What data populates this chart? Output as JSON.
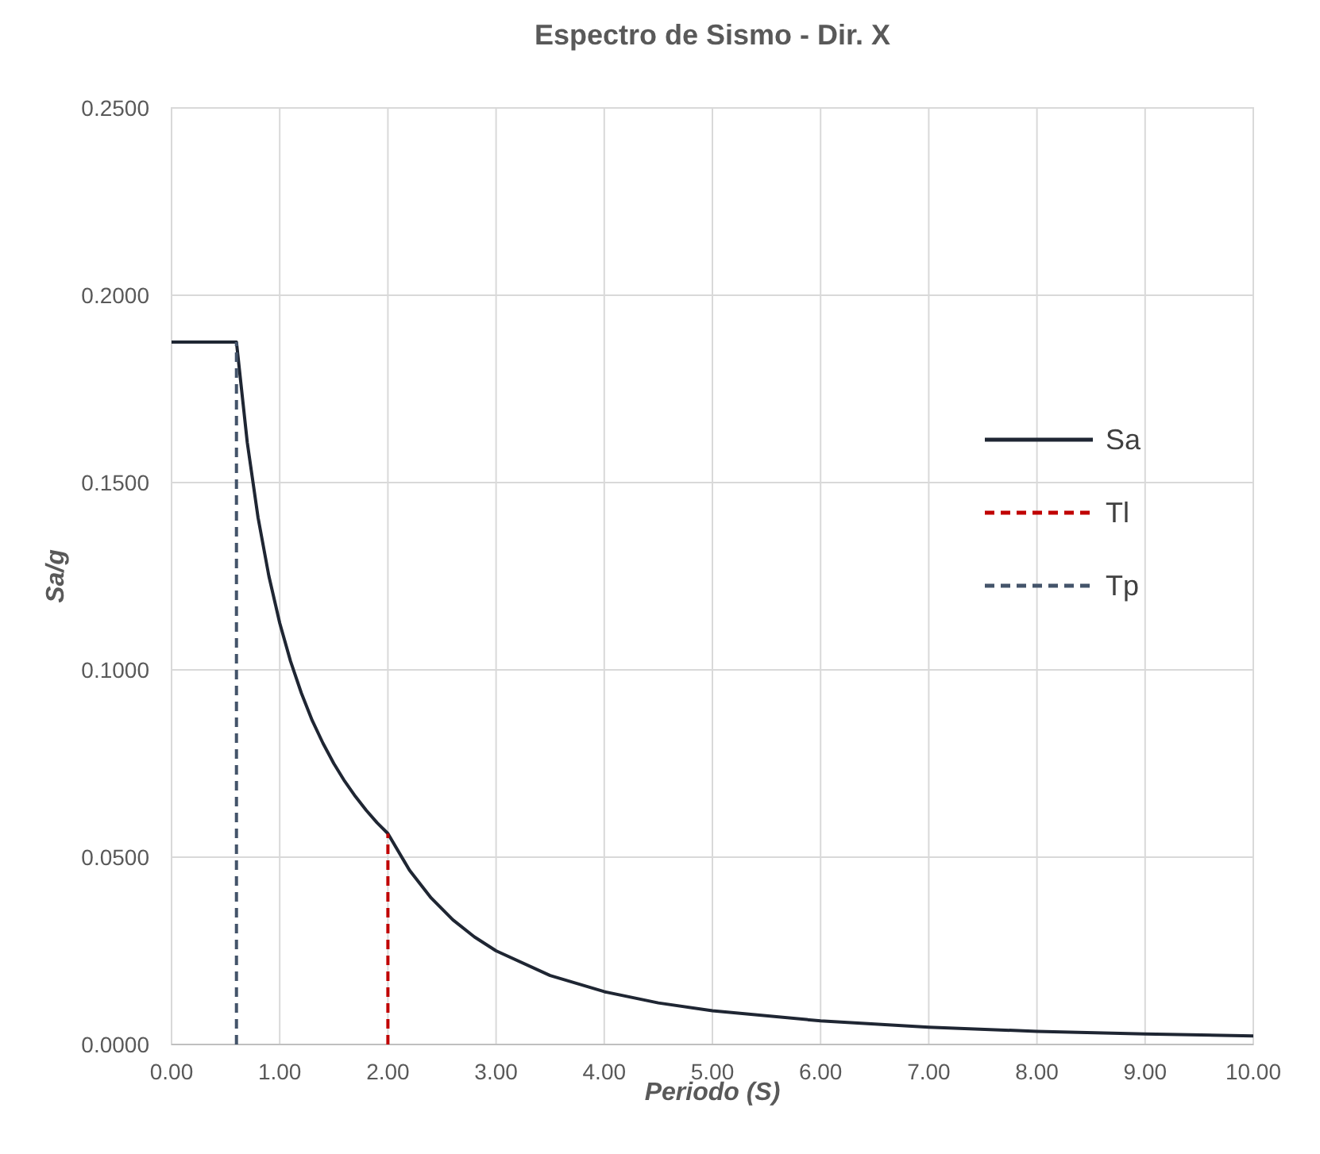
{
  "chart_data": {
    "type": "line",
    "title": "Espectro de Sismo - Dir. X",
    "xlabel": "Periodo (S)",
    "ylabel": "Sa/g",
    "xlim": [
      0,
      10
    ],
    "ylim": [
      0,
      0.25
    ],
    "xticks": [
      {
        "value": 0,
        "label": "0.00"
      },
      {
        "value": 1,
        "label": "1.00"
      },
      {
        "value": 2,
        "label": "2.00"
      },
      {
        "value": 3,
        "label": "3.00"
      },
      {
        "value": 4,
        "label": "4.00"
      },
      {
        "value": 5,
        "label": "5.00"
      },
      {
        "value": 6,
        "label": "6.00"
      },
      {
        "value": 7,
        "label": "7.00"
      },
      {
        "value": 8,
        "label": "8.00"
      },
      {
        "value": 9,
        "label": "9.00"
      },
      {
        "value": 10,
        "label": "10.00"
      }
    ],
    "yticks": [
      {
        "value": 0,
        "label": "0.0000"
      },
      {
        "value": 0.05,
        "label": "0.0500"
      },
      {
        "value": 0.1,
        "label": "0.1000"
      },
      {
        "value": 0.15,
        "label": "0.1500"
      },
      {
        "value": 0.2,
        "label": "0.2000"
      },
      {
        "value": 0.25,
        "label": "0.2500"
      }
    ],
    "grid": true,
    "legend": "right",
    "marker": "none",
    "series": [
      {
        "name": "Sa",
        "color": "#1f2633",
        "line_style": "solid",
        "x": [
          0,
          0.6,
          0.7,
          0.8,
          0.9,
          1.0,
          1.1,
          1.2,
          1.3,
          1.4,
          1.5,
          1.6,
          1.7,
          1.8,
          1.9,
          2.0,
          2.2,
          2.4,
          2.6,
          2.8,
          3.0,
          3.5,
          4.0,
          4.5,
          5,
          6,
          7,
          8,
          9,
          10
        ],
        "values": [
          0.1875,
          0.1875,
          0.1607,
          0.1406,
          0.125,
          0.1125,
          0.1023,
          0.0938,
          0.0865,
          0.0804,
          0.075,
          0.0703,
          0.0662,
          0.0625,
          0.0592,
          0.0563,
          0.0465,
          0.0391,
          0.0333,
          0.0287,
          0.025,
          0.0184,
          0.0141,
          0.0111,
          0.009,
          0.0063,
          0.0046,
          0.0035,
          0.0028,
          0.0023
        ]
      },
      {
        "name": "Tl",
        "color": "#c00000",
        "line_style": "dashed",
        "x": [
          2,
          2
        ],
        "values": [
          0,
          0.0563
        ]
      },
      {
        "name": "Tp",
        "color": "#44546a",
        "line_style": "dashed",
        "x": [
          0.6,
          0.6
        ],
        "values": [
          0,
          0.1875
        ]
      }
    ]
  }
}
